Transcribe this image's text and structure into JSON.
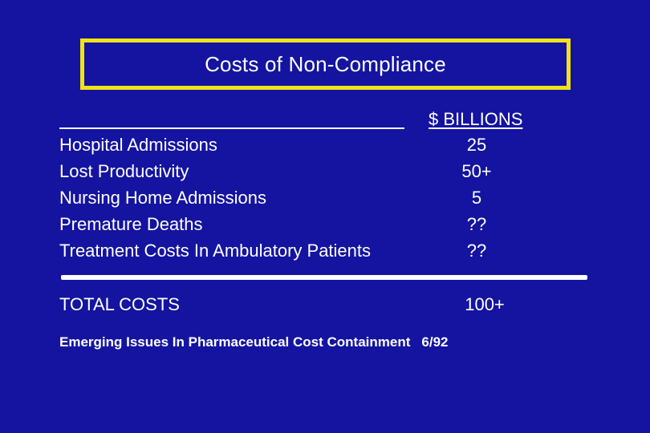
{
  "title": "Costs of Non-Compliance",
  "column_header": "$ BILLIONS",
  "rows": [
    {
      "label": "Hospital Admissions",
      "value": "25"
    },
    {
      "label": "Lost Productivity",
      "value": "50+"
    },
    {
      "label": "Nursing Home Admissions",
      "value": "5"
    },
    {
      "label": "Premature Deaths",
      "value": "??"
    },
    {
      "label": "Treatment Costs In Ambulatory Patients",
      "value": "??"
    }
  ],
  "total": {
    "label": "TOTAL COSTS",
    "value": "100+"
  },
  "source": {
    "text": "Emerging Issues In Pharmaceutical Cost Containment",
    "date": "6/92"
  },
  "colors": {
    "background": "#1414a0",
    "title_border": "#f2e318",
    "text": "#ffffff"
  }
}
